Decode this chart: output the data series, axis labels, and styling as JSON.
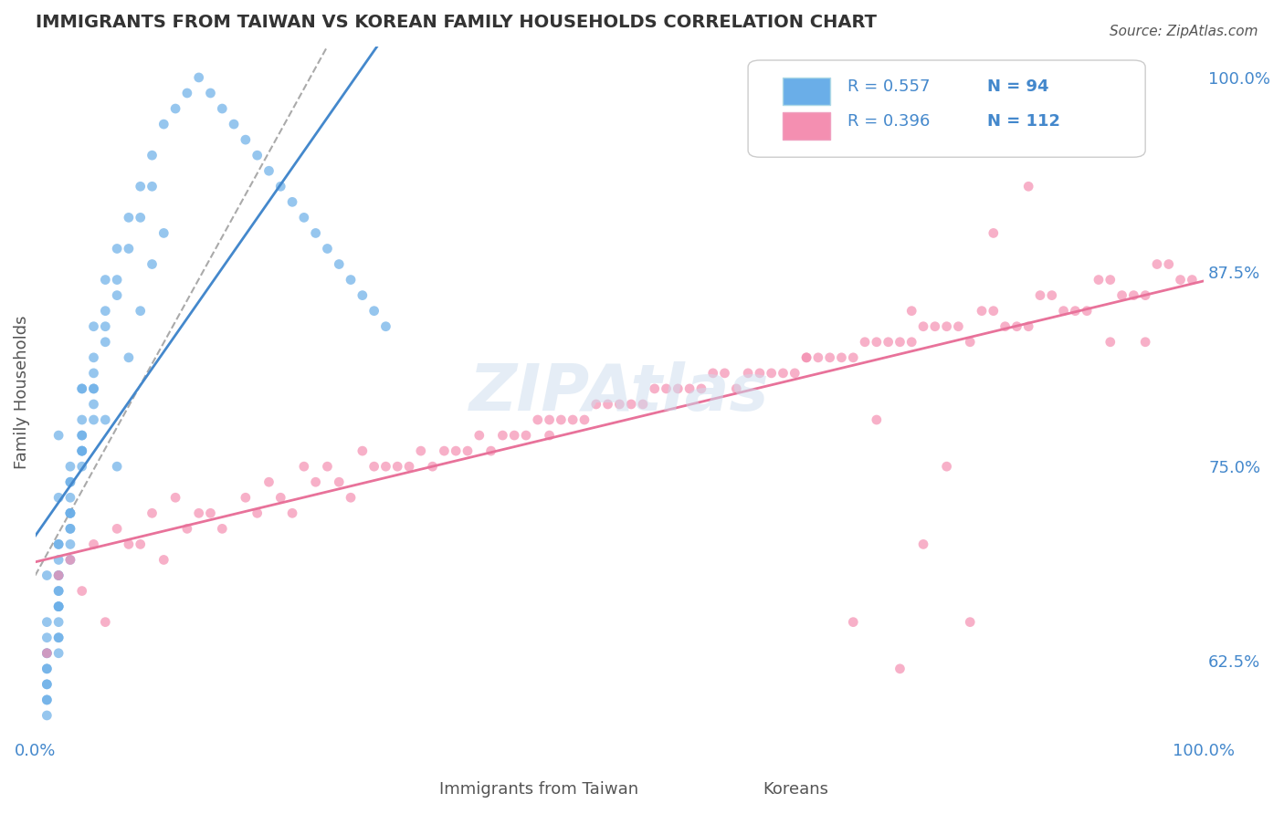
{
  "title": "IMMIGRANTS FROM TAIWAN VS KOREAN FAMILY HOUSEHOLDS CORRELATION CHART",
  "source_text": "Source: ZipAtlas.com",
  "ylabel": "Family Households",
  "xlabel_taiwan": "Immigrants from Taiwan",
  "xlabel_korean": "Koreans",
  "watermark": "ZIPAtlas",
  "legend_taiwan_R": "R = 0.557",
  "legend_taiwan_N": "N = 94",
  "legend_korean_R": "R = 0.396",
  "legend_korean_N": "N = 112",
  "x_min": 0.0,
  "x_max": 1.0,
  "y_min": 0.575,
  "y_max": 1.02,
  "yticks": [
    0.625,
    0.75,
    0.875,
    1.0
  ],
  "ytick_labels": [
    "62.5%",
    "75.0%",
    "87.5%",
    "100.0%"
  ],
  "xticks": [
    0.0,
    0.25,
    0.5,
    0.75,
    1.0
  ],
  "xtick_labels": [
    "0.0%",
    "",
    "",
    "",
    "100.0%"
  ],
  "color_taiwan": "#6aaee8",
  "color_korean": "#f48fb1",
  "color_trend_taiwan": "#4488cc",
  "color_trend_korean": "#e8729a",
  "background_color": "#ffffff",
  "grid_color": "#cccccc",
  "title_color": "#333333",
  "axis_label_color": "#555555",
  "tick_color": "#4488cc",
  "legend_R_color": "#4488cc",
  "watermark_color": "#ccddee",
  "taiwan_scatter_x": [
    0.02,
    0.03,
    0.04,
    0.05,
    0.06,
    0.07,
    0.08,
    0.09,
    0.1,
    0.11,
    0.01,
    0.02,
    0.03,
    0.04,
    0.05,
    0.06,
    0.07,
    0.02,
    0.03,
    0.04,
    0.01,
    0.02,
    0.03,
    0.04,
    0.05,
    0.06,
    0.07,
    0.08,
    0.09,
    0.1,
    0.01,
    0.02,
    0.03,
    0.04,
    0.05,
    0.06,
    0.02,
    0.03,
    0.04,
    0.05,
    0.01,
    0.02,
    0.03,
    0.04,
    0.05,
    0.01,
    0.02,
    0.03,
    0.04,
    0.02,
    0.01,
    0.02,
    0.03,
    0.01,
    0.02,
    0.01,
    0.02,
    0.01,
    0.01,
    0.02,
    0.01,
    0.02,
    0.03,
    0.02,
    0.01,
    0.03,
    0.02,
    0.04,
    0.05,
    0.06,
    0.07,
    0.08,
    0.09,
    0.1,
    0.11,
    0.12,
    0.13,
    0.14,
    0.15,
    0.16,
    0.17,
    0.18,
    0.19,
    0.2,
    0.21,
    0.22,
    0.23,
    0.24,
    0.25,
    0.26,
    0.27,
    0.28,
    0.29,
    0.3
  ],
  "taiwan_scatter_y": [
    0.68,
    0.72,
    0.76,
    0.8,
    0.78,
    0.75,
    0.82,
    0.85,
    0.88,
    0.9,
    0.65,
    0.7,
    0.75,
    0.8,
    0.82,
    0.85,
    0.87,
    0.66,
    0.71,
    0.77,
    0.63,
    0.67,
    0.72,
    0.76,
    0.79,
    0.83,
    0.86,
    0.89,
    0.91,
    0.93,
    0.64,
    0.68,
    0.73,
    0.77,
    0.8,
    0.84,
    0.69,
    0.74,
    0.78,
    0.81,
    0.62,
    0.66,
    0.71,
    0.75,
    0.78,
    0.63,
    0.67,
    0.72,
    0.76,
    0.7,
    0.61,
    0.65,
    0.7,
    0.62,
    0.66,
    0.6,
    0.64,
    0.61,
    0.59,
    0.63,
    0.6,
    0.64,
    0.69,
    0.73,
    0.68,
    0.74,
    0.77,
    0.8,
    0.84,
    0.87,
    0.89,
    0.91,
    0.93,
    0.95,
    0.97,
    0.98,
    0.99,
    1.0,
    0.99,
    0.98,
    0.97,
    0.96,
    0.95,
    0.94,
    0.93,
    0.92,
    0.91,
    0.9,
    0.89,
    0.88,
    0.87,
    0.86,
    0.85,
    0.84
  ],
  "korean_scatter_x": [
    0.02,
    0.05,
    0.1,
    0.15,
    0.2,
    0.25,
    0.3,
    0.35,
    0.4,
    0.45,
    0.5,
    0.55,
    0.6,
    0.65,
    0.7,
    0.75,
    0.8,
    0.85,
    0.9,
    0.95,
    0.03,
    0.07,
    0.12,
    0.18,
    0.23,
    0.28,
    0.33,
    0.38,
    0.43,
    0.48,
    0.53,
    0.58,
    0.63,
    0.68,
    0.73,
    0.78,
    0.83,
    0.88,
    0.93,
    0.98,
    0.04,
    0.08,
    0.13,
    0.19,
    0.24,
    0.29,
    0.34,
    0.39,
    0.44,
    0.49,
    0.54,
    0.59,
    0.64,
    0.69,
    0.74,
    0.79,
    0.84,
    0.89,
    0.94,
    0.99,
    0.06,
    0.11,
    0.16,
    0.22,
    0.27,
    0.32,
    0.37,
    0.42,
    0.47,
    0.52,
    0.57,
    0.62,
    0.67,
    0.72,
    0.77,
    0.82,
    0.87,
    0.92,
    0.97,
    0.01,
    0.09,
    0.14,
    0.21,
    0.26,
    0.31,
    0.36,
    0.41,
    0.46,
    0.51,
    0.56,
    0.61,
    0.66,
    0.71,
    0.76,
    0.81,
    0.86,
    0.91,
    0.96,
    0.44,
    0.66,
    0.7,
    0.72,
    0.74,
    0.75,
    0.76,
    0.78,
    0.8,
    0.82,
    0.85,
    0.88,
    0.92,
    0.95
  ],
  "korean_scatter_y": [
    0.68,
    0.7,
    0.72,
    0.72,
    0.74,
    0.75,
    0.75,
    0.76,
    0.77,
    0.78,
    0.79,
    0.8,
    0.8,
    0.81,
    0.82,
    0.83,
    0.83,
    0.84,
    0.85,
    0.86,
    0.69,
    0.71,
    0.73,
    0.73,
    0.75,
    0.76,
    0.76,
    0.77,
    0.78,
    0.79,
    0.8,
    0.81,
    0.81,
    0.82,
    0.83,
    0.84,
    0.84,
    0.85,
    0.86,
    0.87,
    0.67,
    0.7,
    0.71,
    0.72,
    0.74,
    0.75,
    0.75,
    0.76,
    0.77,
    0.79,
    0.8,
    0.81,
    0.81,
    0.82,
    0.83,
    0.84,
    0.84,
    0.85,
    0.86,
    0.87,
    0.65,
    0.69,
    0.71,
    0.72,
    0.73,
    0.75,
    0.76,
    0.77,
    0.78,
    0.79,
    0.8,
    0.81,
    0.82,
    0.83,
    0.84,
    0.85,
    0.86,
    0.87,
    0.88,
    0.63,
    0.7,
    0.72,
    0.73,
    0.74,
    0.75,
    0.76,
    0.77,
    0.78,
    0.79,
    0.8,
    0.81,
    0.82,
    0.83,
    0.84,
    0.85,
    0.86,
    0.87,
    0.88,
    0.78,
    0.82,
    0.65,
    0.78,
    0.62,
    0.85,
    0.7,
    0.75,
    0.65,
    0.9,
    0.93,
    0.96,
    0.83,
    0.83
  ]
}
